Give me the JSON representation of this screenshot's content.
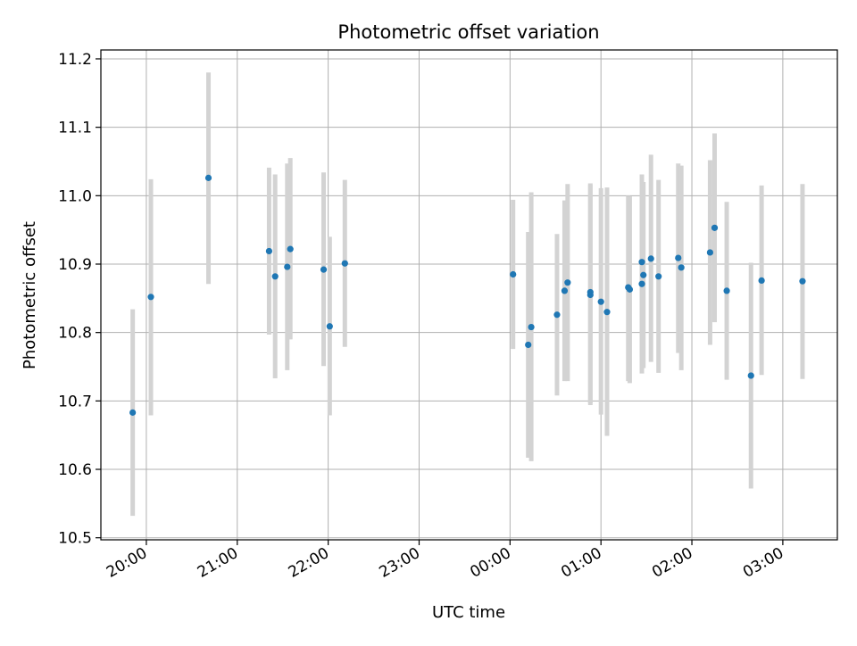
{
  "chart_data": {
    "type": "scatter",
    "title": "Photometric offset variation",
    "xlabel": "UTC time",
    "ylabel": "Photometric offset",
    "x_axis_kind": "time (hours, across midnight)",
    "xlim": [
      "19:30",
      "03:36"
    ],
    "ylim": [
      10.497,
      11.213
    ],
    "x_ticks": [
      "20:00",
      "21:00",
      "22:00",
      "23:00",
      "00:00",
      "01:00",
      "02:00",
      "03:00"
    ],
    "y_ticks": [
      10.5,
      10.6,
      10.7,
      10.8,
      10.9,
      11.0,
      11.1,
      11.2
    ],
    "y_tick_labels": [
      "10.5",
      "10.6",
      "10.7",
      "10.8",
      "10.9",
      "11.0",
      "11.1",
      "11.2"
    ],
    "grid": true,
    "legend": "none",
    "colors": {
      "marker": "#1f77b4",
      "errorbar": "#d3d3d3",
      "grid": "#b0b0b0",
      "axes": "#000000"
    },
    "points": [
      {
        "x": "19:51",
        "y": 10.683,
        "yerr": [
          10.532,
          10.834
        ]
      },
      {
        "x": "20:03",
        "y": 10.852,
        "yerr": [
          10.679,
          11.024
        ]
      },
      {
        "x": "20:41",
        "y": 11.026,
        "yerr": [
          10.871,
          11.18
        ]
      },
      {
        "x": "21:21",
        "y": 10.919,
        "yerr": [
          10.797,
          11.041
        ]
      },
      {
        "x": "21:25",
        "y": 10.882,
        "yerr": [
          10.733,
          11.031
        ]
      },
      {
        "x": "21:33",
        "y": 10.896,
        "yerr": [
          10.745,
          11.047
        ]
      },
      {
        "x": "21:35",
        "y": 10.922,
        "yerr": [
          10.79,
          11.055
        ]
      },
      {
        "x": "21:57",
        "y": 10.892,
        "yerr": [
          10.751,
          11.034
        ]
      },
      {
        "x": "22:01",
        "y": 10.809,
        "yerr": [
          10.679,
          10.94
        ]
      },
      {
        "x": "22:11",
        "y": 10.901,
        "yerr": [
          10.779,
          11.023
        ]
      },
      {
        "x": "00:02",
        "y": 10.885,
        "yerr": [
          10.776,
          10.994
        ]
      },
      {
        "x": "00:12",
        "y": 10.782,
        "yerr": [
          10.617,
          10.947
        ]
      },
      {
        "x": "00:14",
        "y": 10.808,
        "yerr": [
          10.612,
          11.005
        ]
      },
      {
        "x": "00:31",
        "y": 10.826,
        "yerr": [
          10.708,
          10.944
        ]
      },
      {
        "x": "00:36",
        "y": 10.861,
        "yerr": [
          10.729,
          10.993
        ]
      },
      {
        "x": "00:38",
        "y": 10.873,
        "yerr": [
          10.729,
          11.017
        ]
      },
      {
        "x": "00:53",
        "y": 10.855,
        "yerr": [
          10.694,
          11.018
        ]
      },
      {
        "x": "00:53",
        "y": 10.859,
        "yerr": [
          10.697,
          11.016
        ]
      },
      {
        "x": "01:00",
        "y": 10.845,
        "yerr": [
          10.68,
          11.011
        ]
      },
      {
        "x": "01:04",
        "y": 10.83,
        "yerr": [
          10.649,
          11.012
        ]
      },
      {
        "x": "01:18",
        "y": 10.866,
        "yerr": [
          10.729,
          11.0
        ]
      },
      {
        "x": "01:19",
        "y": 10.863,
        "yerr": [
          10.726,
          10.999
        ]
      },
      {
        "x": "01:27",
        "y": 10.903,
        "yerr": [
          10.765,
          11.031
        ]
      },
      {
        "x": "01:27",
        "y": 10.871,
        "yerr": [
          10.74,
          11.0
        ]
      },
      {
        "x": "01:28",
        "y": 10.884,
        "yerr": [
          10.748,
          11.02
        ]
      },
      {
        "x": "01:33",
        "y": 10.908,
        "yerr": [
          10.757,
          11.06
        ]
      },
      {
        "x": "01:38",
        "y": 10.882,
        "yerr": [
          10.741,
          11.023
        ]
      },
      {
        "x": "01:51",
        "y": 10.909,
        "yerr": [
          10.77,
          11.047
        ]
      },
      {
        "x": "01:53",
        "y": 10.895,
        "yerr": [
          10.745,
          11.044
        ]
      },
      {
        "x": "02:12",
        "y": 10.917,
        "yerr": [
          10.782,
          11.052
        ]
      },
      {
        "x": "02:15",
        "y": 10.953,
        "yerr": [
          10.815,
          11.091
        ]
      },
      {
        "x": "02:23",
        "y": 10.861,
        "yerr": [
          10.731,
          10.991
        ]
      },
      {
        "x": "02:39",
        "y": 10.737,
        "yerr": [
          10.572,
          10.902
        ]
      },
      {
        "x": "02:46",
        "y": 10.876,
        "yerr": [
          10.738,
          11.015
        ]
      },
      {
        "x": "03:13",
        "y": 10.875,
        "yerr": [
          10.732,
          11.017
        ]
      }
    ]
  }
}
